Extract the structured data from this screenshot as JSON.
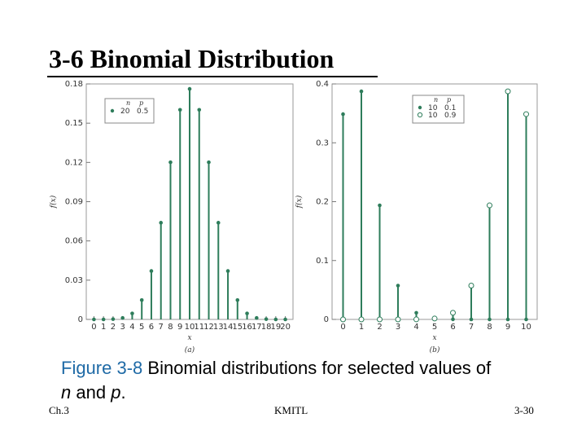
{
  "slide": {
    "title": "3-6 Binomial Distribution",
    "caption_figure": "Figure 3-8",
    "caption_text": " Binomial distributions for selected values of",
    "caption_n": "n",
    "caption_and": " and ",
    "caption_p": "p",
    "caption_end": ".",
    "footer_left": "Ch.3",
    "footer_center": "KMITL",
    "footer_right": "3-30"
  },
  "colors": {
    "accent": "#2e7d5b",
    "caption_figure": "#1f6aa6"
  },
  "chart_data": [
    {
      "type": "line",
      "panel_label": "(a)",
      "xlabel": "x",
      "ylabel": "f(x)",
      "ylim": [
        0,
        0.18
      ],
      "yticks": [
        "0",
        "0.03",
        "0.06",
        "0.09",
        "0.12",
        "0.15",
        "0.18"
      ],
      "x": [
        0,
        1,
        2,
        3,
        4,
        5,
        6,
        7,
        8,
        9,
        10,
        11,
        12,
        13,
        14,
        15,
        16,
        17,
        18,
        19,
        20
      ],
      "legend": {
        "header_n": "n",
        "header_p": "p",
        "entries": [
          {
            "n": "20",
            "p": "0.5",
            "marker": "filled"
          }
        ]
      },
      "series": [
        {
          "marker": "filled",
          "values": [
            0,
            0,
            0.0002,
            0.0011,
            0.0046,
            0.0148,
            0.037,
            0.0739,
            0.1201,
            0.1602,
            0.1762,
            0.1602,
            0.1201,
            0.0739,
            0.037,
            0.0148,
            0.0046,
            0.0011,
            0.0002,
            0,
            0
          ]
        }
      ]
    },
    {
      "type": "line",
      "panel_label": "(b)",
      "xlabel": "x",
      "ylabel": "f(x)",
      "ylim": [
        0,
        0.4
      ],
      "yticks": [
        "0",
        "0.1",
        "0.2",
        "0.3",
        "0.4"
      ],
      "x": [
        0,
        1,
        2,
        3,
        4,
        5,
        6,
        7,
        8,
        9,
        10
      ],
      "legend": {
        "header_n": "n",
        "header_p": "p",
        "entries": [
          {
            "n": "10",
            "p": "0.1",
            "marker": "filled"
          },
          {
            "n": "10",
            "p": "0.9",
            "marker": "open"
          }
        ]
      },
      "series": [
        {
          "marker": "filled",
          "values": [
            0.3487,
            0.3874,
            0.1937,
            0.0574,
            0.0112,
            0.0015,
            0.0001,
            0,
            0,
            0,
            0
          ]
        },
        {
          "marker": "open",
          "values": [
            0,
            0,
            0,
            0,
            0.0001,
            0.0015,
            0.0112,
            0.0574,
            0.1937,
            0.3874,
            0.3487
          ]
        }
      ]
    }
  ]
}
